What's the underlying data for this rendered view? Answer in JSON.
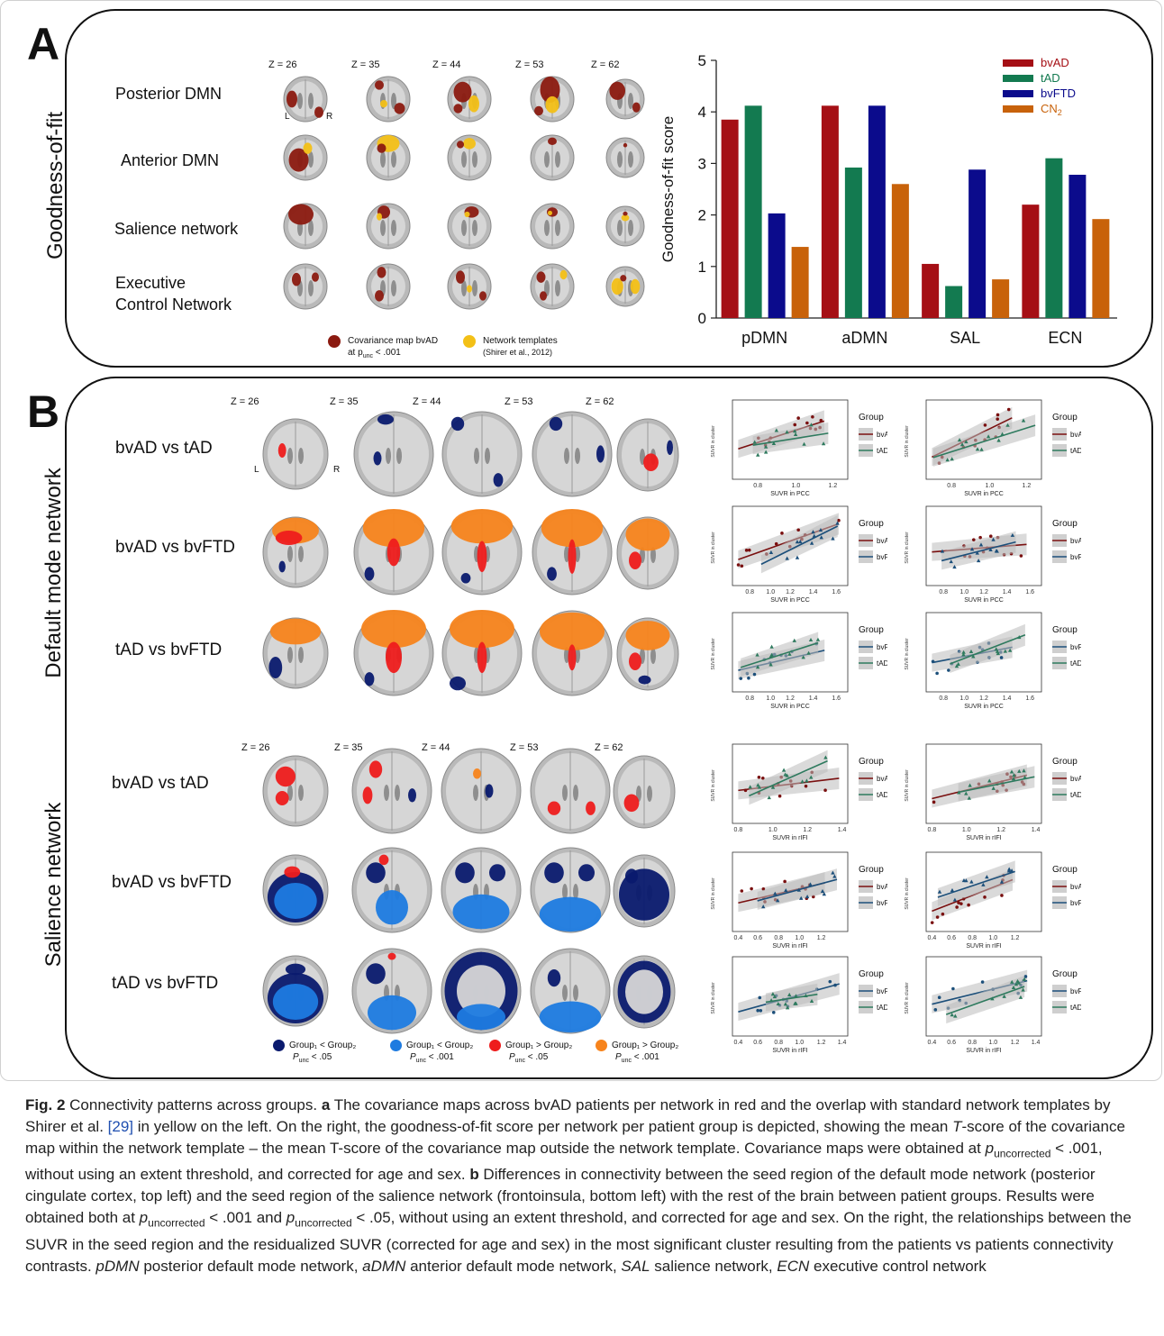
{
  "panel_a": {
    "letter": "A",
    "side_label": "Goodness-of-fit",
    "z_labels": [
      "Z = 26",
      "Z = 35",
      "Z = 44",
      "Z = 53",
      "Z = 62"
    ],
    "orientation": {
      "left": "L",
      "right": "R"
    },
    "rows": [
      "Posterior DMN",
      "Anterior DMN",
      "Salience network",
      "Executive\nControl Network"
    ],
    "legend": {
      "cov_line1": "Covariance map bvAD",
      "cov_line2_pre": "at p",
      "cov_line2_sub": "unc",
      "cov_line2_post": " < .001",
      "tmpl_line1": "Network templates",
      "tmpl_line2": "(Shirer et al., 2012)"
    },
    "colors": {
      "covariance": "#8b1a10",
      "template": "#f3c017"
    }
  },
  "chart_data": {
    "type": "bar",
    "categories": [
      "pDMN",
      "aDMN",
      "SAL",
      "ECN"
    ],
    "ylabel": "Goodness-of-fit score",
    "ylim": [
      0,
      5
    ],
    "yticks": [
      "0",
      "1",
      "2",
      "3",
      "4",
      "5"
    ],
    "legend_position": "top-right",
    "series": [
      {
        "name": "bvAD",
        "color": "#a50f15",
        "values": [
          3.85,
          4.12,
          1.05,
          2.2
        ]
      },
      {
        "name": "tAD",
        "color": "#137a50",
        "values": [
          4.12,
          2.92,
          0.62,
          3.1
        ]
      },
      {
        "name": "bvFTD",
        "color": "#0b0b8c",
        "values": [
          2.03,
          4.12,
          2.88,
          2.78
        ]
      },
      {
        "name": "CN",
        "name_sub": "2",
        "color": "#c8620a",
        "values": [
          1.38,
          2.6,
          0.75,
          1.92
        ]
      }
    ]
  },
  "panel_b": {
    "letter": "B",
    "side_labels": [
      "Default mode network",
      "Salience network"
    ],
    "z_labels": [
      "Z = 26",
      "Z = 35",
      "Z = 44",
      "Z = 53",
      "Z = 62"
    ],
    "orientation": {
      "left": "L",
      "right": "R"
    },
    "dmn_rows": [
      "bvAD vs tAD",
      "bvAD vs bvFTD",
      "tAD vs bvFTD"
    ],
    "sal_rows": [
      "bvAD vs tAD",
      "bvAD vs bvFTD",
      "tAD vs bvFTD"
    ],
    "legend": [
      {
        "line1": "Group₁ < Group₂",
        "p": "P",
        "sub": "unc",
        "thr": " < .05",
        "color": "#0a1a6e"
      },
      {
        "line1": "Group₁ < Group₂",
        "p": "P",
        "sub": "unc",
        "thr": " < .001",
        "color": "#1e7be0"
      },
      {
        "line1": "Group₁ > Group₂",
        "p": "P",
        "sub": "unc",
        "thr": " < .05",
        "color": "#ee1c1c"
      },
      {
        "line1": "Group₁ > Group₂",
        "p": "P",
        "sub": "unc",
        "thr": " < .001",
        "color": "#f7841c"
      }
    ],
    "scatter_legend_title": "Group",
    "scatter_xlabel_dmn": "SUVR in PCC",
    "scatter_xlabel_sal": "SUVR in rIFI",
    "colors": {
      "bvAD": "#7a1010",
      "tAD": "#2e7a5e",
      "bvFTD": "#1c4f7a"
    }
  },
  "caption": {
    "fig": "Fig. 2",
    "text_1": " Connectivity patterns across groups. ",
    "a": "a",
    "text_2": " The covariance maps across bvAD patients per network in red and the overlap with standard network templates by Shirer et al. ",
    "ref": "[29]",
    "text_3": " in yellow on the left. On the right, the goodness-of-fit score per network per patient group is depicted, showing the mean ",
    "t_italic": "T",
    "text_4": "-score of the covariance map within the network template – the mean T-score of the covariance map outside the network template. Covariance maps were obtained at ",
    "p1": "p",
    "p1_sub": "uncorrected",
    "text_5": " < .001, without using an extent threshold, and corrected for age and sex. ",
    "b": "b",
    "text_6": " Differences in connectivity between the seed region of the default mode network (posterior cingulate cortex, top left) and the seed region of the salience network (frontoinsula, bottom left) with the rest of the brain between patient groups. Results were obtained both at ",
    "p2": "p",
    "p2_sub": "uncorrected",
    "text_7": " < .001 and ",
    "p3": "p",
    "p3_sub": "uncorrected",
    "text_8": " < .05, without using an extent threshold, and corrected for age and sex. On the right, the relationships between the SUVR in the seed region and the residualized SUVR (corrected for age and sex) in the most significant cluster resulting from the patients vs patients connectivity contrasts. ",
    "abbr1": "pDMN",
    "abbr1_def": " posterior default mode network, ",
    "abbr2": "aDMN",
    "abbr2_def": " anterior default mode network, ",
    "abbr3": "SAL",
    "abbr3_def": " salience network, ",
    "abbr4": "ECN",
    "abbr4_def": " executive control network"
  }
}
